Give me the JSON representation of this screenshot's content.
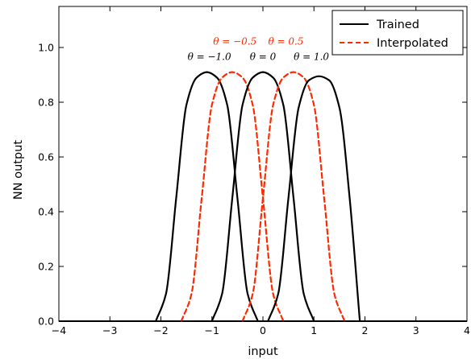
{
  "chart_data": {
    "type": "line",
    "title": "",
    "xlabel": "input",
    "ylabel": "NN output",
    "xlim": [
      -4,
      4
    ],
    "ylim": [
      0,
      1.15
    ],
    "xticks": [
      -4,
      -3,
      -2,
      -1,
      0,
      1,
      2,
      3,
      4
    ],
    "yticks": [
      0.0,
      0.2,
      0.4,
      0.6,
      0.8,
      1.0
    ],
    "xtick_labels": [
      "−4",
      "−3",
      "−2",
      "−1",
      "0",
      "1",
      "2",
      "3",
      "4"
    ],
    "ytick_labels": [
      "0.0",
      "0.2",
      "0.4",
      "0.6",
      "0.8",
      "1.0"
    ],
    "grid": false,
    "legend_position": "top-right",
    "legend": [
      {
        "label": "Trained",
        "color": "#000000",
        "style": "solid"
      },
      {
        "label": "Interpolated",
        "color": "#ff2a00",
        "style": "dashed"
      }
    ],
    "series": [
      {
        "group": "Trained",
        "color": "#000000",
        "style": "solid",
        "x": [
          -2.1,
          -1.9,
          -1.7,
          -1.5,
          -1.3,
          -1.1,
          -0.9,
          -0.7,
          -0.5,
          -0.3,
          -0.1
        ],
        "y": [
          0.0,
          0.1,
          0.45,
          0.79,
          0.89,
          0.91,
          0.89,
          0.79,
          0.45,
          0.1,
          0.0
        ]
      },
      {
        "group": "Interpolated",
        "color": "#ff2a00",
        "style": "dashed",
        "x": [
          -1.6,
          -1.4,
          -1.2,
          -1.0,
          -0.8,
          -0.6,
          -0.4,
          -0.2,
          0.0,
          0.2,
          0.4
        ],
        "y": [
          0.0,
          0.1,
          0.45,
          0.79,
          0.89,
          0.91,
          0.89,
          0.79,
          0.45,
          0.1,
          0.0
        ]
      },
      {
        "group": "Trained",
        "color": "#000000",
        "style": "solid",
        "x": [
          -1.0,
          -0.8,
          -0.6,
          -0.4,
          -0.2,
          0.0,
          0.2,
          0.4,
          0.6,
          0.8,
          1.0
        ],
        "y": [
          0.0,
          0.1,
          0.45,
          0.79,
          0.89,
          0.91,
          0.89,
          0.79,
          0.45,
          0.1,
          0.0
        ]
      },
      {
        "group": "Interpolated",
        "color": "#ff2a00",
        "style": "dashed",
        "x": [
          -0.4,
          -0.2,
          0.0,
          0.2,
          0.4,
          0.6,
          0.8,
          1.0,
          1.2,
          1.4,
          1.6
        ],
        "y": [
          0.0,
          0.1,
          0.45,
          0.79,
          0.89,
          0.91,
          0.89,
          0.79,
          0.45,
          0.1,
          0.0
        ]
      },
      {
        "group": "Trained",
        "color": "#000000",
        "style": "solid",
        "x": [
          0.1,
          0.3,
          0.5,
          0.7,
          0.9,
          1.1,
          1.3,
          1.5,
          1.7,
          1.9
        ],
        "y": [
          0.0,
          0.1,
          0.45,
          0.78,
          0.88,
          0.895,
          0.88,
          0.78,
          0.45,
          0.0
        ]
      }
    ],
    "annotations": [
      {
        "text": "θ = −0.5",
        "x": -0.55,
        "y": 1.01,
        "color": "#ff2a00"
      },
      {
        "text": "θ = 0.5",
        "x": 0.45,
        "y": 1.01,
        "color": "#ff2a00"
      },
      {
        "text": "θ = −1.0",
        "x": -1.05,
        "y": 0.955,
        "color": "#000000"
      },
      {
        "text": "θ = 0",
        "x": 0.0,
        "y": 0.955,
        "color": "#000000"
      },
      {
        "text": "θ = 1.0",
        "x": 0.95,
        "y": 0.955,
        "color": "#000000"
      }
    ]
  }
}
